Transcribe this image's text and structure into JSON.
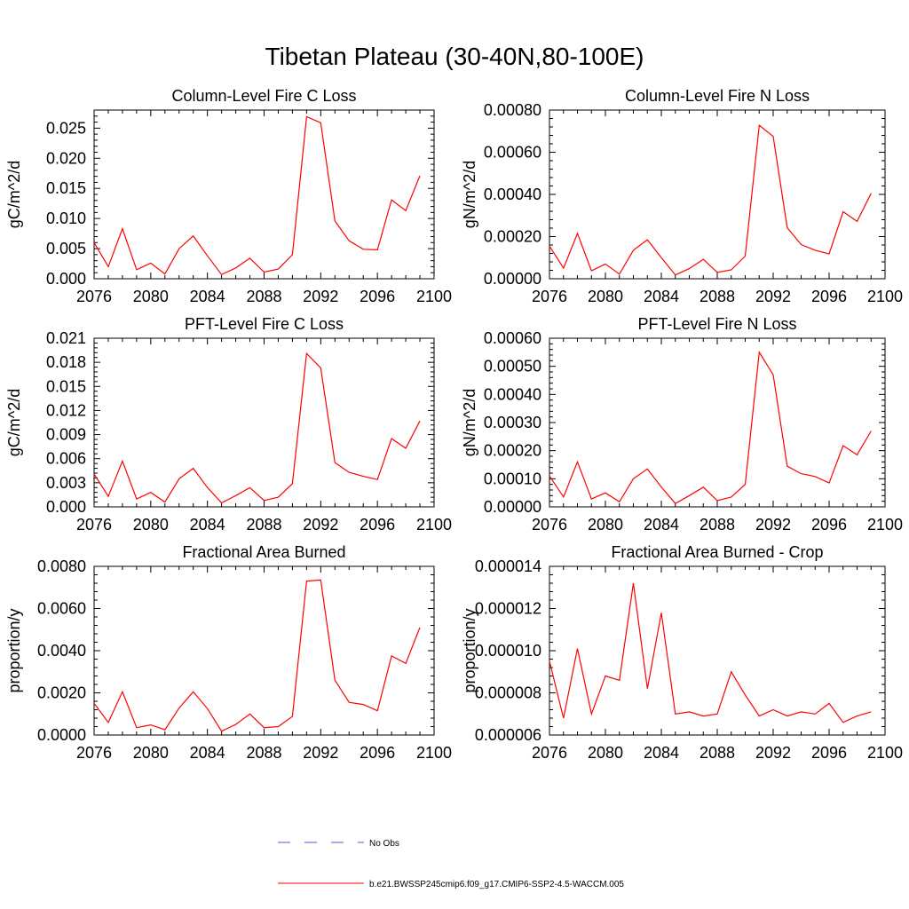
{
  "title": "Tibetan Plateau (30-40N,80-100E)",
  "legend": [
    {
      "label": "No Obs",
      "color": "#5555cc",
      "style": "dashed"
    },
    {
      "label": "b.e21.BWSSP245cmip6.f09_g17.CMIP6-SSP2-4.5-WACCM.005",
      "color": "#ff0000",
      "style": "solid"
    }
  ],
  "chart_data": [
    {
      "type": "line",
      "title": "Column-Level Fire C Loss",
      "ylabel": "gC/m^2/d",
      "xlim": [
        2076,
        2100
      ],
      "ylim": [
        0,
        0.028
      ],
      "xticks": [
        "2076",
        "2080",
        "2084",
        "2088",
        "2092",
        "2096",
        "2100"
      ],
      "yticks": [
        "0.000",
        "0.005",
        "0.010",
        "0.015",
        "0.020",
        "0.025"
      ],
      "x": [
        2076,
        2077,
        2078,
        2079,
        2080,
        2081,
        2082,
        2083,
        2084,
        2085,
        2086,
        2087,
        2088,
        2089,
        2090,
        2091,
        2092,
        2093,
        2094,
        2095,
        2096,
        2097,
        2098,
        2099
      ],
      "series": [
        {
          "color": "#ff0000",
          "values": [
            0.006,
            0.002,
            0.0083,
            0.0015,
            0.0026,
            0.0008,
            0.005,
            0.0071,
            0.0038,
            0.0007,
            0.0018,
            0.0034,
            0.0011,
            0.0016,
            0.004,
            0.0269,
            0.0259,
            0.0096,
            0.0063,
            0.0049,
            0.0048,
            0.0131,
            0.0113,
            0.0171
          ]
        }
      ]
    },
    {
      "type": "line",
      "title": "Column-Level Fire N Loss",
      "ylabel": "gN/m^2/d",
      "xlim": [
        2076,
        2100
      ],
      "ylim": [
        0,
        0.0008
      ],
      "xticks": [
        "2076",
        "2080",
        "2084",
        "2088",
        "2092",
        "2096",
        "2100"
      ],
      "yticks": [
        "0.00000",
        "0.00020",
        "0.00040",
        "0.00060",
        "0.00080"
      ],
      "x": [
        2076,
        2077,
        2078,
        2079,
        2080,
        2081,
        2082,
        2083,
        2084,
        2085,
        2086,
        2087,
        2088,
        2089,
        2090,
        2091,
        2092,
        2093,
        2094,
        2095,
        2096,
        2097,
        2098,
        2099
      ],
      "series": [
        {
          "color": "#ff0000",
          "values": [
            0.000155,
            5e-05,
            0.000215,
            3.8e-05,
            7e-05,
            2.2e-05,
            0.000135,
            0.000185,
            0.0001,
            1.8e-05,
            4.8e-05,
            9.2e-05,
            3e-05,
            4.2e-05,
            0.000108,
            0.000728,
            0.000675,
            0.000242,
            0.000162,
            0.000135,
            0.000118,
            0.000318,
            0.000272,
            0.000405
          ]
        }
      ]
    },
    {
      "type": "line",
      "title": "PFT-Level Fire C Loss",
      "ylabel": "gC/m^2/d",
      "xlim": [
        2076,
        2100
      ],
      "ylim": [
        0,
        0.021
      ],
      "xticks": [
        "2076",
        "2080",
        "2084",
        "2088",
        "2092",
        "2096",
        "2100"
      ],
      "yticks": [
        "0.000",
        "0.003",
        "0.006",
        "0.009",
        "0.012",
        "0.015",
        "0.018",
        "0.021"
      ],
      "x": [
        2076,
        2077,
        2078,
        2079,
        2080,
        2081,
        2082,
        2083,
        2084,
        2085,
        2086,
        2087,
        2088,
        2089,
        2090,
        2091,
        2092,
        2093,
        2094,
        2095,
        2096,
        2097,
        2098,
        2099
      ],
      "series": [
        {
          "color": "#ff0000",
          "values": [
            0.0041,
            0.0013,
            0.0057,
            0.001,
            0.0018,
            0.0006,
            0.0035,
            0.0048,
            0.0024,
            0.0005,
            0.0014,
            0.0024,
            0.0008,
            0.0012,
            0.0029,
            0.0191,
            0.0173,
            0.0055,
            0.0043,
            0.0038,
            0.0034,
            0.0085,
            0.0073,
            0.0107
          ]
        }
      ]
    },
    {
      "type": "line",
      "title": "PFT-Level Fire N Loss",
      "ylabel": "gN/m^2/d",
      "xlim": [
        2076,
        2100
      ],
      "ylim": [
        0,
        0.0006
      ],
      "xticks": [
        "2076",
        "2080",
        "2084",
        "2088",
        "2092",
        "2096",
        "2100"
      ],
      "yticks": [
        "0.00000",
        "0.00010",
        "0.00020",
        "0.00030",
        "0.00040",
        "0.00050",
        "0.00060"
      ],
      "x": [
        2076,
        2077,
        2078,
        2079,
        2080,
        2081,
        2082,
        2083,
        2084,
        2085,
        2086,
        2087,
        2088,
        2089,
        2090,
        2091,
        2092,
        2093,
        2094,
        2095,
        2096,
        2097,
        2098,
        2099
      ],
      "series": [
        {
          "color": "#ff0000",
          "values": [
            0.00011,
            3.5e-05,
            0.00016,
            2.8e-05,
            5e-05,
            1.8e-05,
            0.0001,
            0.000135,
            7e-05,
            1.2e-05,
            4e-05,
            7e-05,
            2.2e-05,
            3.5e-05,
            8e-05,
            0.00055,
            0.00047,
            0.000145,
            0.000118,
            0.000108,
            8.5e-05,
            0.000218,
            0.000185,
            0.00027
          ]
        }
      ]
    },
    {
      "type": "line",
      "title": "Fractional Area Burned",
      "ylabel": "proportion/y",
      "xlim": [
        2076,
        2100
      ],
      "ylim": [
        0,
        0.008
      ],
      "xticks": [
        "2076",
        "2080",
        "2084",
        "2088",
        "2092",
        "2096",
        "2100"
      ],
      "yticks": [
        "0.0000",
        "0.0020",
        "0.0040",
        "0.0060",
        "0.0080"
      ],
      "x": [
        2076,
        2077,
        2078,
        2079,
        2080,
        2081,
        2082,
        2083,
        2084,
        2085,
        2086,
        2087,
        2088,
        2089,
        2090,
        2091,
        2092,
        2093,
        2094,
        2095,
        2096,
        2097,
        2098,
        2099
      ],
      "series": [
        {
          "color": "#ff0000",
          "values": [
            0.0015,
            0.0006,
            0.00205,
            0.00035,
            0.00048,
            0.00025,
            0.00128,
            0.00205,
            0.00125,
            0.00018,
            0.0005,
            0.001,
            0.00035,
            0.0004,
            0.00088,
            0.0073,
            0.00735,
            0.0026,
            0.00155,
            0.00145,
            0.00115,
            0.00375,
            0.0034,
            0.0051
          ]
        }
      ]
    },
    {
      "type": "line",
      "title": "Fractional Area Burned - Crop",
      "ylabel": "proportion/y",
      "xlim": [
        2076,
        2100
      ],
      "ylim": [
        6e-06,
        1.4e-05
      ],
      "xticks": [
        "2076",
        "2080",
        "2084",
        "2088",
        "2092",
        "2096",
        "2100"
      ],
      "yticks": [
        "0.000006",
        "0.000008",
        "0.000010",
        "0.000012",
        "0.000014"
      ],
      "x": [
        2076,
        2077,
        2078,
        2079,
        2080,
        2081,
        2082,
        2083,
        2084,
        2085,
        2086,
        2087,
        2088,
        2089,
        2090,
        2091,
        2092,
        2093,
        2094,
        2095,
        2096,
        2097,
        2098,
        2099
      ],
      "series": [
        {
          "color": "#ff0000",
          "values": [
            9.5e-06,
            6.8e-06,
            1.01e-05,
            7e-06,
            8.8e-06,
            8.6e-06,
            1.32e-05,
            8.2e-06,
            1.18e-05,
            7e-06,
            7.1e-06,
            6.9e-06,
            7e-06,
            9e-06,
            7.9e-06,
            6.9e-06,
            7.2e-06,
            6.9e-06,
            7.1e-06,
            7e-06,
            7.5e-06,
            6.6e-06,
            6.9e-06,
            7.1e-06
          ]
        }
      ]
    }
  ]
}
